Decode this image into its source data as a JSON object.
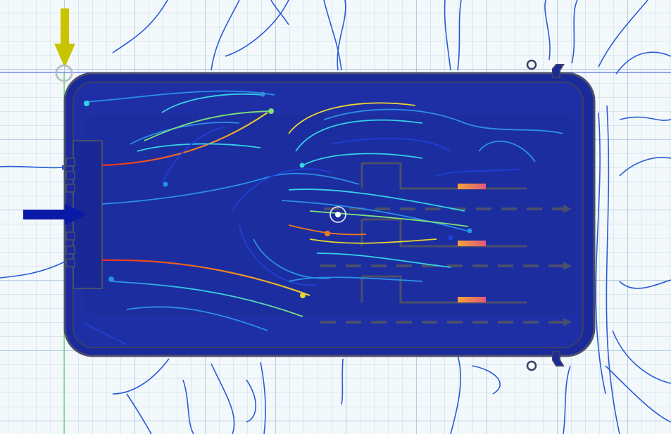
{
  "viewport": {
    "background": "#f3f8fb",
    "grid_color": "#9bbbd3",
    "axis_x_color": "#3a56d8",
    "axis_y_color": "#4fd14f"
  },
  "colors": {
    "enclosure_fill": "#1b2a9a",
    "enclosure_edge": "#4a4f6b",
    "inlet_arrow": "#0a1aa8",
    "gravity_arrow": "#c9c400",
    "streamline_outside": "#2a5bd6",
    "heat_source": "#e07a6a"
  },
  "icons": {
    "gravity": "gravity-arrow-icon",
    "inlet": "inlet-flow-arrow-icon",
    "pivot": "view-pivot-icon",
    "origin": "origin-marker-icon"
  },
  "streamline_colormap": [
    "#1f3fd6",
    "#2a8fe8",
    "#35d1e6",
    "#7de07a",
    "#e8d62f",
    "#f07a1e",
    "#e8301e"
  ]
}
